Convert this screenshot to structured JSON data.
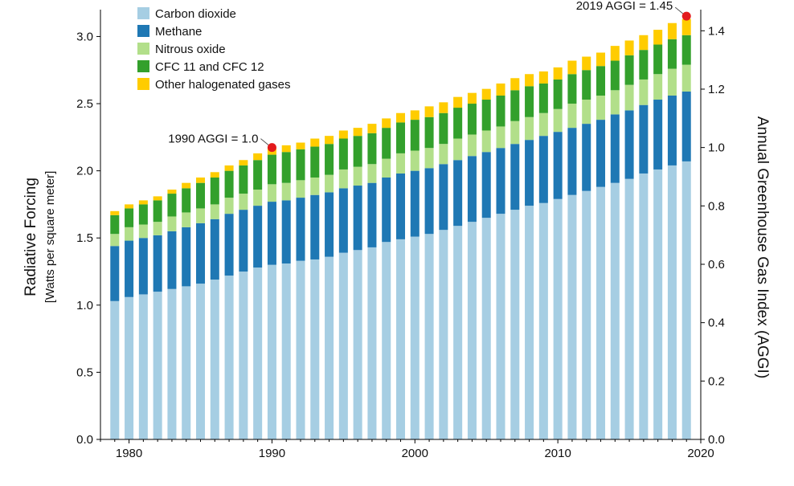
{
  "chart_data": {
    "type": "bar",
    "stacked": true,
    "x": [
      1979,
      1980,
      1981,
      1982,
      1983,
      1984,
      1985,
      1986,
      1987,
      1988,
      1989,
      1990,
      1991,
      1992,
      1993,
      1994,
      1995,
      1996,
      1997,
      1998,
      1999,
      2000,
      2001,
      2002,
      2003,
      2004,
      2005,
      2006,
      2007,
      2008,
      2009,
      2010,
      2011,
      2012,
      2013,
      2014,
      2015,
      2016,
      2017,
      2018,
      2019
    ],
    "xlim": [
      1978,
      2020
    ],
    "xticks": [
      "1980",
      "1990",
      "2000",
      "2010",
      "2020"
    ],
    "xtick_values": [
      1980,
      1990,
      2000,
      2010,
      2020
    ],
    "ylim": [
      0,
      3.2
    ],
    "yticks": [
      "0.0",
      "0.5",
      "1.0",
      "1.5",
      "2.0",
      "2.5",
      "3.0"
    ],
    "ytick_values": [
      0,
      0.5,
      1.0,
      1.5,
      2.0,
      2.5,
      3.0
    ],
    "y2lim": [
      0,
      1.4724
    ],
    "y2ticks": [
      "0.0",
      "0.2",
      "0.4",
      "0.6",
      "0.8",
      "1.0",
      "1.2",
      "1.4"
    ],
    "y2tick_values": [
      0,
      0.2,
      0.4,
      0.6,
      0.8,
      1.0,
      1.2,
      1.4
    ],
    "ylabel": "Radiative Forcing",
    "ylabel_sub": "[Watts per square meter]",
    "y2label": "Annual Greenhouse Gas Index (AGGI)",
    "legend_position": "top-left",
    "series": [
      {
        "name": "Carbon dioxide",
        "color": "#a6cee3",
        "values": [
          1.03,
          1.06,
          1.08,
          1.1,
          1.12,
          1.14,
          1.16,
          1.19,
          1.22,
          1.25,
          1.28,
          1.3,
          1.31,
          1.33,
          1.34,
          1.36,
          1.39,
          1.41,
          1.43,
          1.47,
          1.49,
          1.51,
          1.53,
          1.56,
          1.59,
          1.62,
          1.65,
          1.68,
          1.71,
          1.74,
          1.76,
          1.79,
          1.82,
          1.85,
          1.88,
          1.91,
          1.94,
          1.98,
          2.01,
          2.04,
          2.07
        ]
      },
      {
        "name": "Methane",
        "color": "#1f78b4",
        "values": [
          0.41,
          0.42,
          0.42,
          0.42,
          0.43,
          0.44,
          0.45,
          0.45,
          0.46,
          0.46,
          0.46,
          0.47,
          0.47,
          0.47,
          0.48,
          0.48,
          0.48,
          0.48,
          0.48,
          0.48,
          0.49,
          0.49,
          0.49,
          0.49,
          0.49,
          0.49,
          0.49,
          0.49,
          0.49,
          0.49,
          0.5,
          0.5,
          0.5,
          0.5,
          0.5,
          0.51,
          0.51,
          0.51,
          0.52,
          0.52,
          0.52
        ]
      },
      {
        "name": "Nitrous oxide",
        "color": "#b2df8a",
        "values": [
          0.09,
          0.1,
          0.1,
          0.1,
          0.11,
          0.11,
          0.11,
          0.11,
          0.12,
          0.12,
          0.12,
          0.13,
          0.13,
          0.13,
          0.13,
          0.13,
          0.14,
          0.14,
          0.14,
          0.14,
          0.15,
          0.15,
          0.15,
          0.15,
          0.16,
          0.16,
          0.16,
          0.16,
          0.17,
          0.17,
          0.17,
          0.17,
          0.18,
          0.18,
          0.18,
          0.18,
          0.19,
          0.19,
          0.19,
          0.2,
          0.2
        ]
      },
      {
        "name": "CFC 11 and CFC 12",
        "color": "#33a02c",
        "values": [
          0.14,
          0.14,
          0.15,
          0.16,
          0.17,
          0.18,
          0.19,
          0.2,
          0.2,
          0.21,
          0.22,
          0.22,
          0.23,
          0.23,
          0.23,
          0.23,
          0.23,
          0.23,
          0.23,
          0.23,
          0.23,
          0.23,
          0.23,
          0.23,
          0.23,
          0.23,
          0.23,
          0.23,
          0.23,
          0.23,
          0.22,
          0.22,
          0.22,
          0.22,
          0.22,
          0.22,
          0.22,
          0.22,
          0.22,
          0.22,
          0.22
        ]
      },
      {
        "name": "Other halogenated gases",
        "color": "#ffcc00",
        "values": [
          0.03,
          0.03,
          0.03,
          0.03,
          0.03,
          0.04,
          0.04,
          0.04,
          0.04,
          0.04,
          0.05,
          0.05,
          0.05,
          0.05,
          0.06,
          0.06,
          0.06,
          0.06,
          0.07,
          0.07,
          0.07,
          0.07,
          0.08,
          0.08,
          0.08,
          0.08,
          0.08,
          0.09,
          0.09,
          0.09,
          0.09,
          0.09,
          0.1,
          0.1,
          0.1,
          0.11,
          0.11,
          0.11,
          0.11,
          0.12,
          0.12
        ]
      }
    ],
    "annotations": [
      {
        "label": "1990 AGGI = 1.0",
        "x": 1990,
        "aggi": 1.0,
        "color": "#e31a1c"
      },
      {
        "label": "2019 AGGI = 1.45",
        "x": 2019,
        "aggi": 1.45,
        "color": "#e31a1c"
      }
    ]
  }
}
